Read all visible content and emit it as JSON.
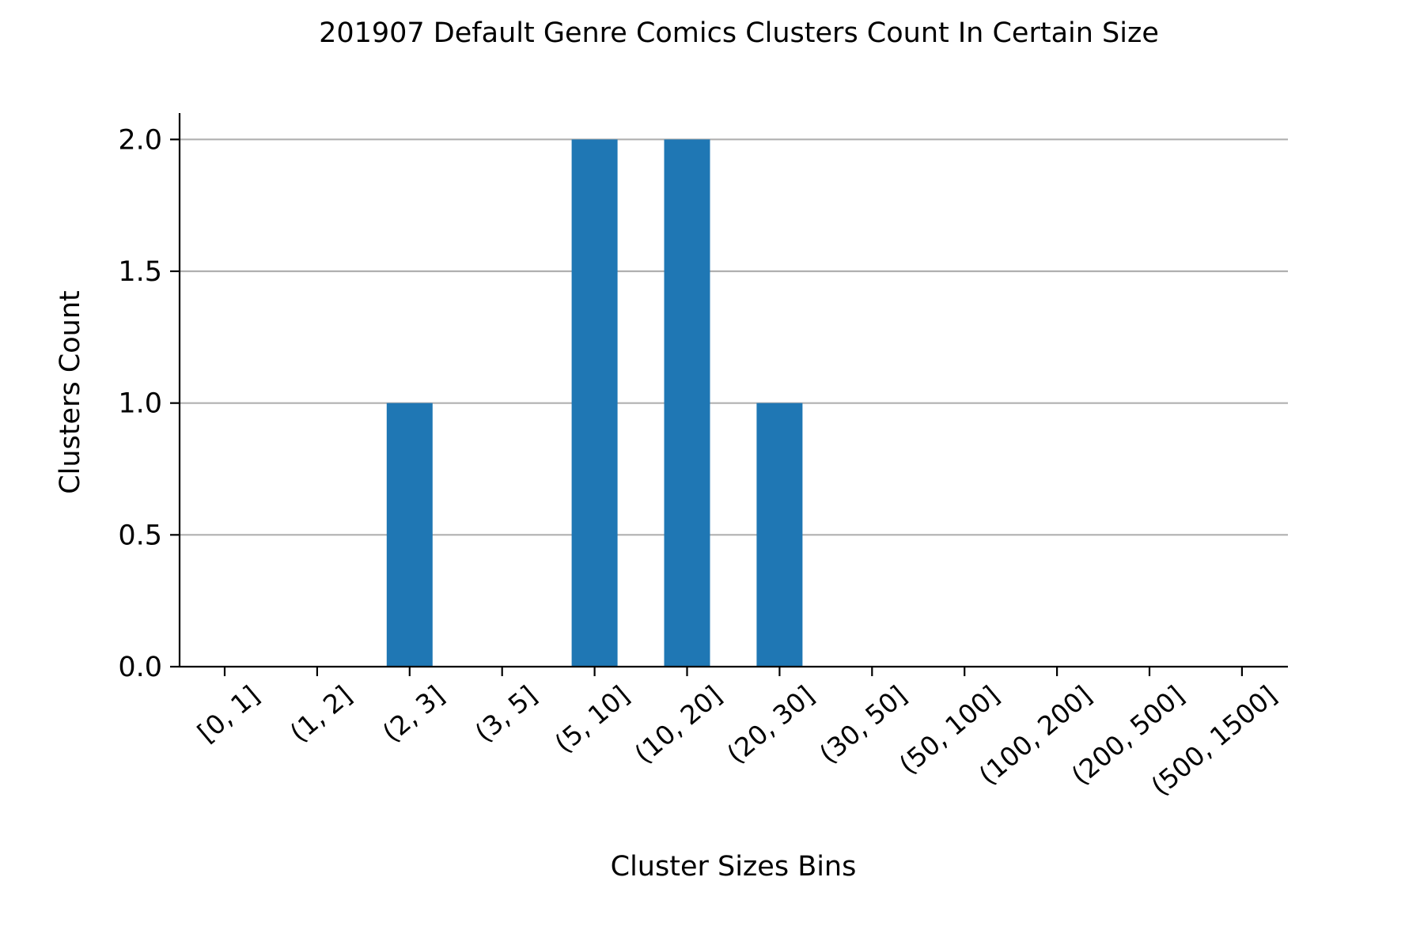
{
  "chart_data": {
    "type": "bar",
    "title": "201907 Default Genre Comics Clusters Count In Certain Size",
    "xlabel": "Cluster Sizes Bins",
    "ylabel": "Clusters Count",
    "categories": [
      "[0, 1]",
      "(1, 2]",
      "(2, 3]",
      "(3, 5]",
      "(5, 10]",
      "(10, 20]",
      "(20, 30]",
      "(30, 50]",
      "(50, 100]",
      "(100, 200]",
      "(200, 500]",
      "(500, 1500]"
    ],
    "values": [
      0,
      0,
      1,
      0,
      2,
      2,
      1,
      0,
      0,
      0,
      0,
      0
    ],
    "ylim": [
      0,
      2.1
    ],
    "yticks": [
      "0.0",
      "0.5",
      "1.0",
      "1.5",
      "2.0"
    ],
    "grid": "horizontal",
    "legend": "none",
    "colors": {
      "bar": "#1f77b4",
      "grid": "#b0b0b0",
      "axis": "#000000"
    }
  }
}
